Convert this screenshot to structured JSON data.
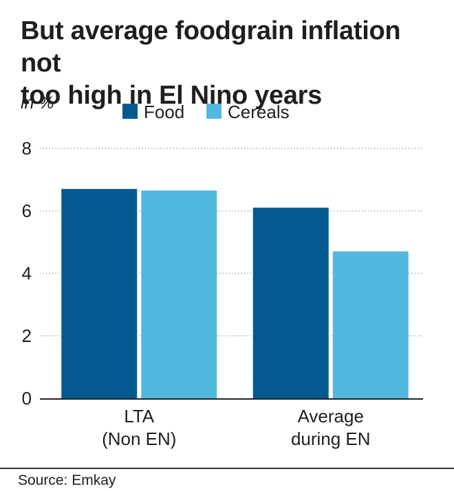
{
  "title_lines": [
    "But average foodgrain inflation not",
    "too high in El Nino years"
  ],
  "source": "Source: Emkay",
  "colors": {
    "food": "#035a90",
    "cereals": "#52b8e0",
    "grid": "#9a9a9a",
    "axis": "#222222"
  },
  "chart_data": {
    "type": "bar",
    "title": "But average foodgrain inflation not too high in El Nino years",
    "ylabel": "in %",
    "xlabel": "",
    "ylim": [
      0,
      8
    ],
    "yticks": [
      0,
      2,
      4,
      6,
      8
    ],
    "grid": true,
    "legend_position": "top",
    "categories": [
      [
        "LTA",
        "(Non EN)"
      ],
      [
        "Average",
        "during EN"
      ]
    ],
    "series": [
      {
        "name": "Food",
        "color": "#035a90",
        "values": [
          6.7,
          6.1
        ]
      },
      {
        "name": "Cereals",
        "color": "#52b8e0",
        "values": [
          6.65,
          4.7
        ]
      }
    ]
  }
}
